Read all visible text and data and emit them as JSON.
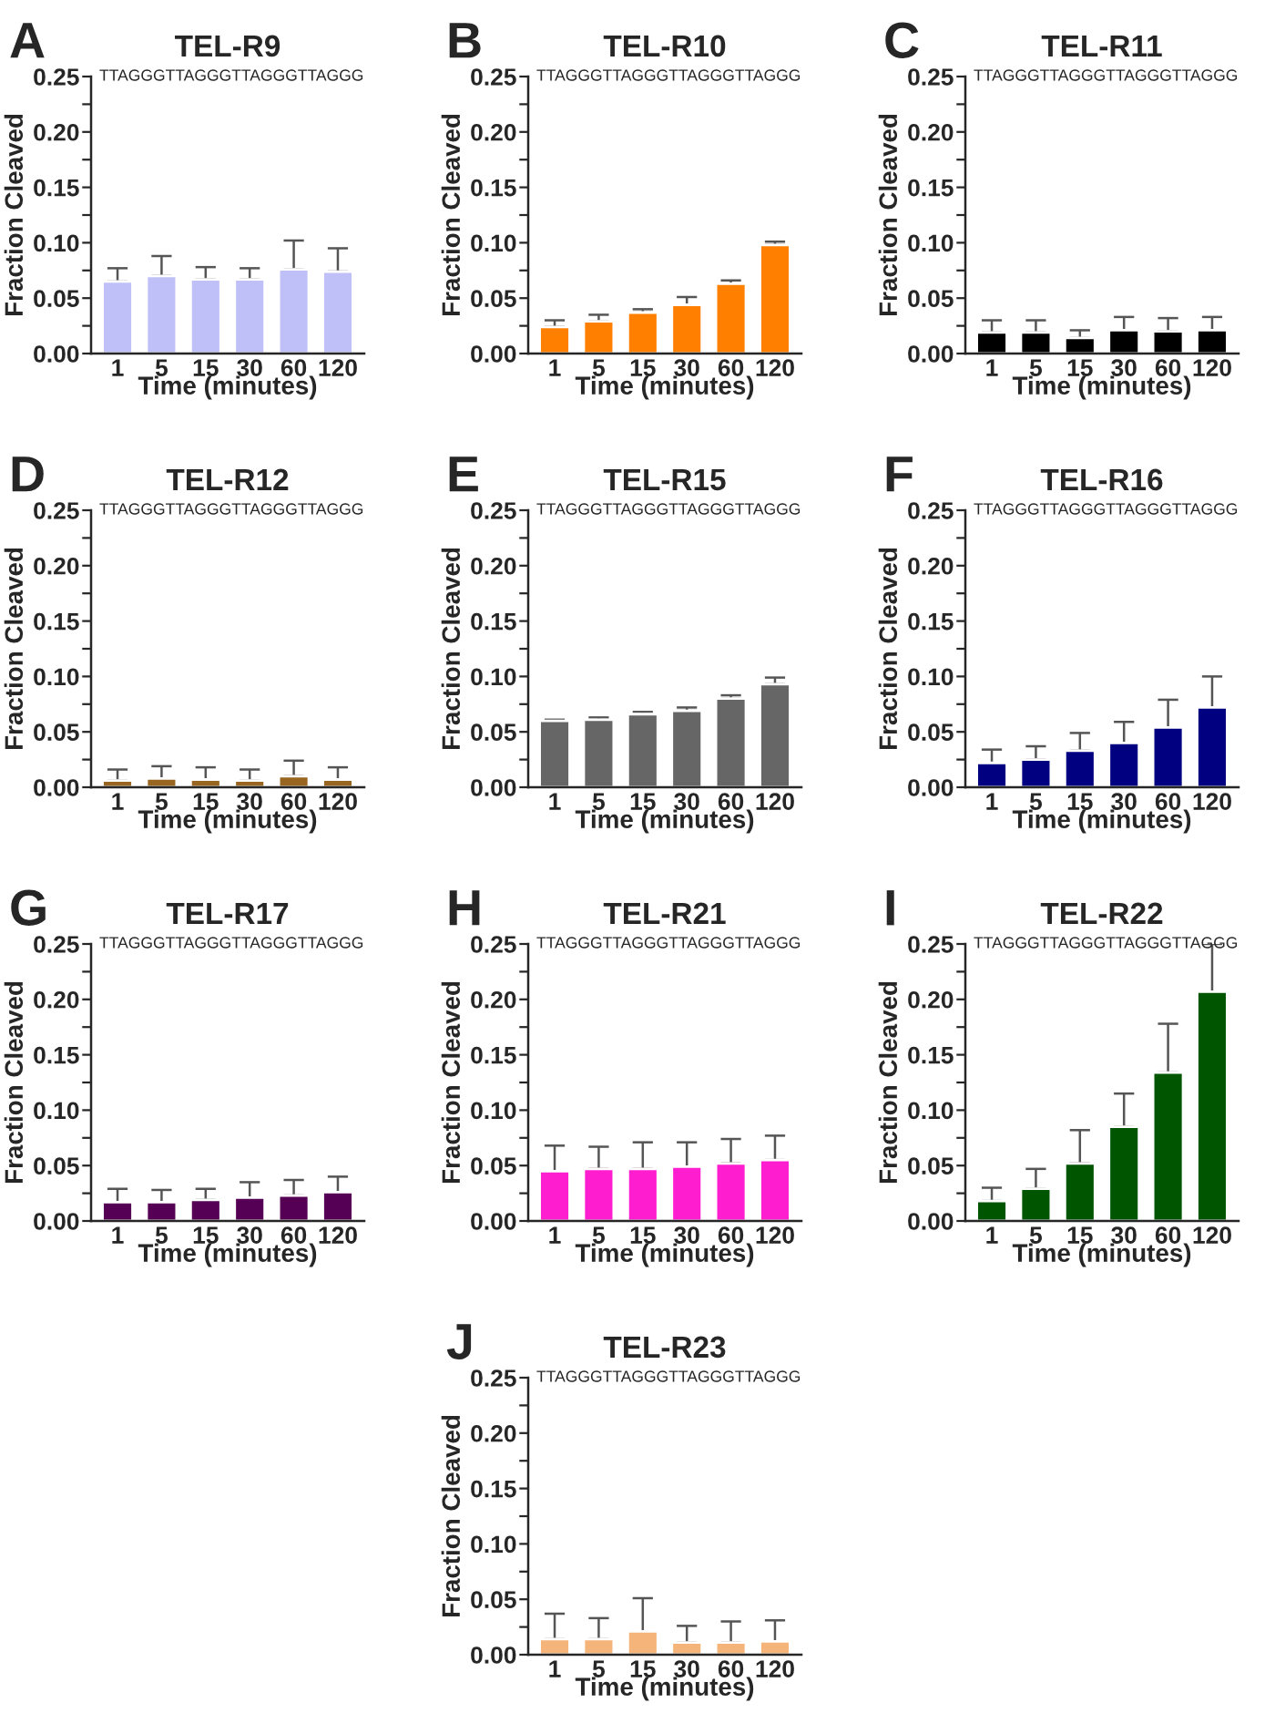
{
  "chart_data": [
    {
      "type": "bar",
      "title": "TEL-R9",
      "subtitle": "TTAGGGTTAGGGTTAGGGTTAGGG",
      "annotations": [
        "A"
      ],
      "xlabel": "Time (minutes)",
      "ylabel": "Fraction Cleaved",
      "categories": [
        "1",
        "5",
        "15",
        "30",
        "60",
        "120"
      ],
      "color": "#c0c0f8",
      "values": [
        0.065,
        0.07,
        0.067,
        0.067,
        0.076,
        0.074
      ],
      "errors": [
        [
          0.065,
          0.077
        ],
        [
          0.07,
          0.088
        ],
        [
          0.067,
          0.078
        ],
        [
          0.067,
          0.077
        ],
        [
          0.076,
          0.102
        ],
        [
          0.074,
          0.095
        ]
      ],
      "ylim": [
        0,
        0.25
      ],
      "yticks": [
        {
          "value": 0,
          "label": "0.00"
        },
        {
          "value": 0.025,
          "label": null
        },
        {
          "value": 0.05,
          "label": "0.05"
        },
        {
          "value": 0.075,
          "label": null
        },
        {
          "value": 0.1,
          "label": "0.10"
        },
        {
          "value": 0.125,
          "label": null
        },
        {
          "value": 0.15,
          "label": "0.15"
        },
        {
          "value": 0.175,
          "label": null
        },
        {
          "value": 0.2,
          "label": "0.20"
        },
        {
          "value": 0.225,
          "label": null
        },
        {
          "value": 0.25,
          "label": "0.25"
        }
      ],
      "grid": false,
      "legend": false
    },
    {
      "type": "bar",
      "title": "TEL-R10",
      "subtitle": "TTAGGGTTAGGGTTAGGGTTAGGG",
      "annotations": [
        "B"
      ],
      "xlabel": "Time (minutes)",
      "ylabel": "Fraction Cleaved",
      "categories": [
        "1",
        "5",
        "15",
        "30",
        "60",
        "120"
      ],
      "color": "#ff8000",
      "values": [
        0.024,
        0.029,
        0.037,
        0.044,
        0.063,
        0.098
      ],
      "errors": [
        [
          0.024,
          0.03
        ],
        [
          0.029,
          0.035
        ],
        [
          0.037,
          0.04
        ],
        [
          0.044,
          0.051
        ],
        [
          0.063,
          0.066
        ],
        [
          0.098,
          0.101
        ]
      ],
      "ylim": [
        0,
        0.25
      ],
      "yticks": [
        {
          "value": 0,
          "label": "0.00"
        },
        {
          "value": 0.025,
          "label": null
        },
        {
          "value": 0.05,
          "label": "0.05"
        },
        {
          "value": 0.075,
          "label": null
        },
        {
          "value": 0.1,
          "label": "0.10"
        },
        {
          "value": 0.125,
          "label": null
        },
        {
          "value": 0.15,
          "label": "0.15"
        },
        {
          "value": 0.175,
          "label": null
        },
        {
          "value": 0.2,
          "label": "0.20"
        },
        {
          "value": 0.225,
          "label": null
        },
        {
          "value": 0.25,
          "label": "0.25"
        }
      ],
      "grid": false,
      "legend": false
    },
    {
      "type": "bar",
      "title": "TEL-R11",
      "subtitle": "TTAGGGTTAGGGTTAGGGTTAGGG",
      "annotations": [
        "C"
      ],
      "xlabel": "Time (minutes)",
      "ylabel": "Fraction Cleaved",
      "categories": [
        "1",
        "5",
        "15",
        "30",
        "60",
        "120"
      ],
      "color": "#000000",
      "values": [
        0.019,
        0.019,
        0.014,
        0.021,
        0.02,
        0.021
      ],
      "errors": [
        [
          0.019,
          0.03
        ],
        [
          0.019,
          0.03
        ],
        [
          0.014,
          0.021
        ],
        [
          0.021,
          0.033
        ],
        [
          0.02,
          0.032
        ],
        [
          0.021,
          0.033
        ]
      ],
      "ylim": [
        0,
        0.25
      ],
      "yticks": [
        {
          "value": 0,
          "label": "0.00"
        },
        {
          "value": 0.025,
          "label": null
        },
        {
          "value": 0.05,
          "label": "0.05"
        },
        {
          "value": 0.075,
          "label": null
        },
        {
          "value": 0.1,
          "label": "0.10"
        },
        {
          "value": 0.125,
          "label": null
        },
        {
          "value": 0.15,
          "label": "0.15"
        },
        {
          "value": 0.175,
          "label": null
        },
        {
          "value": 0.2,
          "label": "0.20"
        },
        {
          "value": 0.225,
          "label": null
        },
        {
          "value": 0.25,
          "label": "0.25"
        }
      ],
      "grid": false,
      "legend": false
    },
    {
      "type": "bar",
      "title": "TEL-R12",
      "subtitle": "TTAGGGTTAGGGTTAGGGTTAGGG",
      "annotations": [
        "D"
      ],
      "xlabel": "Time (minutes)",
      "ylabel": "Fraction Cleaved",
      "categories": [
        "1",
        "5",
        "15",
        "30",
        "60",
        "120"
      ],
      "color": "#996622",
      "values": [
        0.006,
        0.008,
        0.007,
        0.006,
        0.01,
        0.007
      ],
      "errors": [
        [
          0.006,
          0.016
        ],
        [
          0.008,
          0.019
        ],
        [
          0.007,
          0.018
        ],
        [
          0.006,
          0.016
        ],
        [
          0.01,
          0.024
        ],
        [
          0.007,
          0.018
        ]
      ],
      "ylim": [
        0,
        0.25
      ],
      "yticks": [
        {
          "value": 0,
          "label": "0.00"
        },
        {
          "value": 0.025,
          "label": null
        },
        {
          "value": 0.05,
          "label": "0.05"
        },
        {
          "value": 0.075,
          "label": null
        },
        {
          "value": 0.1,
          "label": "0.10"
        },
        {
          "value": 0.125,
          "label": null
        },
        {
          "value": 0.15,
          "label": "0.15"
        },
        {
          "value": 0.175,
          "label": null
        },
        {
          "value": 0.2,
          "label": "0.20"
        },
        {
          "value": 0.225,
          "label": null
        },
        {
          "value": 0.25,
          "label": "0.25"
        }
      ],
      "grid": false,
      "legend": false
    },
    {
      "type": "bar",
      "title": "TEL-R15",
      "subtitle": "TTAGGGTTAGGGTTAGGGTTAGGG",
      "annotations": [
        "E"
      ],
      "xlabel": "Time (minutes)",
      "ylabel": "Fraction Cleaved",
      "categories": [
        "1",
        "5",
        "15",
        "30",
        "60",
        "120"
      ],
      "color": "#666666",
      "values": [
        0.06,
        0.061,
        0.066,
        0.069,
        0.08,
        0.093
      ],
      "errors": [
        [
          0.06,
          0.061
        ],
        [
          0.061,
          0.063
        ],
        [
          0.066,
          0.068
        ],
        [
          0.069,
          0.072
        ],
        [
          0.08,
          0.083
        ],
        [
          0.093,
          0.099
        ]
      ],
      "ylim": [
        0,
        0.25
      ],
      "yticks": [
        {
          "value": 0,
          "label": "0.00"
        },
        {
          "value": 0.025,
          "label": null
        },
        {
          "value": 0.05,
          "label": "0.05"
        },
        {
          "value": 0.075,
          "label": null
        },
        {
          "value": 0.1,
          "label": "0.10"
        },
        {
          "value": 0.125,
          "label": null
        },
        {
          "value": 0.15,
          "label": "0.15"
        },
        {
          "value": 0.175,
          "label": null
        },
        {
          "value": 0.2,
          "label": "0.20"
        },
        {
          "value": 0.225,
          "label": null
        },
        {
          "value": 0.25,
          "label": "0.25"
        }
      ],
      "grid": false,
      "legend": false
    },
    {
      "type": "bar",
      "title": "TEL-R16",
      "subtitle": "TTAGGGTTAGGGTTAGGGTTAGGG",
      "annotations": [
        "F"
      ],
      "xlabel": "Time (minutes)",
      "ylabel": "Fraction Cleaved",
      "categories": [
        "1",
        "5",
        "15",
        "30",
        "60",
        "120"
      ],
      "color": "#000080",
      "values": [
        0.022,
        0.025,
        0.033,
        0.04,
        0.054,
        0.072
      ],
      "errors": [
        [
          0.022,
          0.034
        ],
        [
          0.025,
          0.037
        ],
        [
          0.033,
          0.049
        ],
        [
          0.04,
          0.059
        ],
        [
          0.054,
          0.079
        ],
        [
          0.072,
          0.1
        ]
      ],
      "ylim": [
        0,
        0.25
      ],
      "yticks": [
        {
          "value": 0,
          "label": "0.00"
        },
        {
          "value": 0.025,
          "label": null
        },
        {
          "value": 0.05,
          "label": "0.05"
        },
        {
          "value": 0.075,
          "label": null
        },
        {
          "value": 0.1,
          "label": "0.10"
        },
        {
          "value": 0.125,
          "label": null
        },
        {
          "value": 0.15,
          "label": "0.15"
        },
        {
          "value": 0.175,
          "label": null
        },
        {
          "value": 0.2,
          "label": "0.20"
        },
        {
          "value": 0.225,
          "label": null
        },
        {
          "value": 0.25,
          "label": "0.25"
        }
      ],
      "grid": false,
      "legend": false
    },
    {
      "type": "bar",
      "title": "TEL-R17",
      "subtitle": "TTAGGGTTAGGGTTAGGGTTAGGG",
      "annotations": [
        "G"
      ],
      "xlabel": "Time (minutes)",
      "ylabel": "Fraction Cleaved",
      "categories": [
        "1",
        "5",
        "15",
        "30",
        "60",
        "120"
      ],
      "color": "#550055",
      "values": [
        0.017,
        0.017,
        0.019,
        0.021,
        0.023,
        0.026
      ],
      "errors": [
        [
          0.017,
          0.029
        ],
        [
          0.017,
          0.028
        ],
        [
          0.019,
          0.029
        ],
        [
          0.021,
          0.035
        ],
        [
          0.023,
          0.037
        ],
        [
          0.026,
          0.04
        ]
      ],
      "ylim": [
        0,
        0.25
      ],
      "yticks": [
        {
          "value": 0,
          "label": "0.00"
        },
        {
          "value": 0.025,
          "label": null
        },
        {
          "value": 0.05,
          "label": "0.05"
        },
        {
          "value": 0.075,
          "label": null
        },
        {
          "value": 0.1,
          "label": "0.10"
        },
        {
          "value": 0.125,
          "label": null
        },
        {
          "value": 0.15,
          "label": "0.15"
        },
        {
          "value": 0.175,
          "label": null
        },
        {
          "value": 0.2,
          "label": "0.20"
        },
        {
          "value": 0.225,
          "label": null
        },
        {
          "value": 0.25,
          "label": "0.25"
        }
      ],
      "grid": false,
      "legend": false
    },
    {
      "type": "bar",
      "title": "TEL-R21",
      "subtitle": "TTAGGGTTAGGGTTAGGGTTAGGG",
      "annotations": [
        "H"
      ],
      "xlabel": "Time (minutes)",
      "ylabel": "Fraction Cleaved",
      "categories": [
        "1",
        "5",
        "15",
        "30",
        "60",
        "120"
      ],
      "color": "#ff1ecf",
      "values": [
        0.045,
        0.047,
        0.047,
        0.049,
        0.052,
        0.055
      ],
      "errors": [
        [
          0.045,
          0.068
        ],
        [
          0.047,
          0.067
        ],
        [
          0.047,
          0.071
        ],
        [
          0.049,
          0.071
        ],
        [
          0.052,
          0.074
        ],
        [
          0.055,
          0.077
        ]
      ],
      "ylim": [
        0,
        0.25
      ],
      "yticks": [
        {
          "value": 0,
          "label": "0.00"
        },
        {
          "value": 0.025,
          "label": null
        },
        {
          "value": 0.05,
          "label": "0.05"
        },
        {
          "value": 0.075,
          "label": null
        },
        {
          "value": 0.1,
          "label": "0.10"
        },
        {
          "value": 0.125,
          "label": null
        },
        {
          "value": 0.15,
          "label": "0.15"
        },
        {
          "value": 0.175,
          "label": null
        },
        {
          "value": 0.2,
          "label": "0.20"
        },
        {
          "value": 0.225,
          "label": null
        },
        {
          "value": 0.25,
          "label": "0.25"
        }
      ],
      "grid": false,
      "legend": false
    },
    {
      "type": "bar",
      "title": "TEL-R22",
      "subtitle": "TTAGGGTTAGGGTTAGGGTTAGGG",
      "annotations": [
        "I"
      ],
      "xlabel": "Time (minutes)",
      "ylabel": "Fraction Cleaved",
      "categories": [
        "1",
        "5",
        "15",
        "30",
        "60",
        "120"
      ],
      "color": "#005500",
      "values": [
        0.018,
        0.029,
        0.052,
        0.085,
        0.134,
        0.207
      ],
      "errors": [
        [
          0.018,
          0.03
        ],
        [
          0.029,
          0.047
        ],
        [
          0.052,
          0.082
        ],
        [
          0.085,
          0.115
        ],
        [
          0.134,
          0.178
        ],
        [
          0.207,
          0.25
        ]
      ],
      "ylim": [
        0,
        0.25
      ],
      "yticks": [
        {
          "value": 0,
          "label": "0.00"
        },
        {
          "value": 0.025,
          "label": null
        },
        {
          "value": 0.05,
          "label": "0.05"
        },
        {
          "value": 0.075,
          "label": null
        },
        {
          "value": 0.1,
          "label": "0.10"
        },
        {
          "value": 0.125,
          "label": null
        },
        {
          "value": 0.15,
          "label": "0.15"
        },
        {
          "value": 0.175,
          "label": null
        },
        {
          "value": 0.2,
          "label": "0.20"
        },
        {
          "value": 0.225,
          "label": null
        },
        {
          "value": 0.25,
          "label": "0.25"
        }
      ],
      "grid": false,
      "legend": false
    },
    {
      "type": "bar",
      "title": "TEL-R23",
      "subtitle": "TTAGGGTTAGGGTTAGGGTTAGGG",
      "annotations": [
        "J"
      ],
      "xlabel": "Time (minutes)",
      "ylabel": "Fraction Cleaved",
      "categories": [
        "1",
        "5",
        "15",
        "30",
        "60",
        "120"
      ],
      "color": "#f5b57a",
      "values": [
        0.014,
        0.014,
        0.021,
        0.011,
        0.011,
        0.012
      ],
      "errors": [
        [
          0.014,
          0.037
        ],
        [
          0.014,
          0.033
        ],
        [
          0.021,
          0.051
        ],
        [
          0.011,
          0.026
        ],
        [
          0.011,
          0.03
        ],
        [
          0.012,
          0.031
        ]
      ],
      "ylim": [
        0,
        0.25
      ],
      "yticks": [
        {
          "value": 0,
          "label": "0.00"
        },
        {
          "value": 0.025,
          "label": null
        },
        {
          "value": 0.05,
          "label": "0.05"
        },
        {
          "value": 0.075,
          "label": null
        },
        {
          "value": 0.1,
          "label": "0.10"
        },
        {
          "value": 0.125,
          "label": null
        },
        {
          "value": 0.15,
          "label": "0.15"
        },
        {
          "value": 0.175,
          "label": null
        },
        {
          "value": 0.2,
          "label": "0.20"
        },
        {
          "value": 0.225,
          "label": null
        },
        {
          "value": 0.25,
          "label": "0.25"
        }
      ],
      "grid": false,
      "legend": false
    }
  ]
}
